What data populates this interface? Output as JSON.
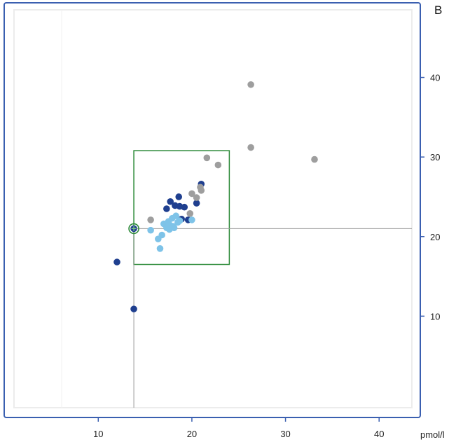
{
  "panel_label": "B",
  "chart_data": {
    "type": "scatter",
    "title": "",
    "xlabel": "pmol/l",
    "ylabel": "",
    "xlim": [
      1,
      43.5
    ],
    "ylim": [
      -1.5,
      48.5
    ],
    "x_ticks": [
      10,
      20,
      30,
      40
    ],
    "y_ticks": [
      10,
      20,
      30,
      40
    ],
    "grid": false,
    "colors": {
      "frame": "#3a5fb0",
      "box": "#2e8b3a",
      "crosshair": "#9a9a9a",
      "dark_blue": "#1f3f8f",
      "light_blue": "#7ec3e8",
      "gray": "#9e9e9e"
    },
    "reference_box": {
      "x": [
        13.8,
        24.0
      ],
      "y": [
        16.5,
        30.8
      ]
    },
    "crosshair": {
      "x": 13.8,
      "y": 21.0
    },
    "highlight_point": {
      "x": 13.8,
      "y": 21.0
    },
    "series": [
      {
        "color": "#1f3f8f",
        "points": [
          [
            12.0,
            16.8
          ],
          [
            13.8,
            10.9
          ],
          [
            13.8,
            21.0
          ],
          [
            17.3,
            23.5
          ],
          [
            17.7,
            24.4
          ],
          [
            18.2,
            23.9
          ],
          [
            18.6,
            25.0
          ],
          [
            18.9,
            22.2
          ],
          [
            19.2,
            23.7
          ],
          [
            20.5,
            24.2
          ],
          [
            21.0,
            26.6
          ],
          [
            19.6,
            22.1
          ],
          [
            18.7,
            23.8
          ]
        ]
      },
      {
        "color": "#7ec3e8",
        "points": [
          [
            15.6,
            20.8
          ],
          [
            16.4,
            19.7
          ],
          [
            16.6,
            18.5
          ],
          [
            16.8,
            20.2
          ],
          [
            17.0,
            21.6
          ],
          [
            17.3,
            21.1
          ],
          [
            17.5,
            21.9
          ],
          [
            17.7,
            21.4
          ],
          [
            17.9,
            22.3
          ],
          [
            18.1,
            21.1
          ],
          [
            18.3,
            22.6
          ],
          [
            18.5,
            21.8
          ],
          [
            18.7,
            22.0
          ],
          [
            20.0,
            22.1
          ],
          [
            17.6,
            20.9
          ],
          [
            18.0,
            21.3
          ]
        ]
      },
      {
        "color": "#9e9e9e",
        "points": [
          [
            15.6,
            22.1
          ],
          [
            19.8,
            22.9
          ],
          [
            20.0,
            25.4
          ],
          [
            20.5,
            24.9
          ],
          [
            21.0,
            25.8
          ],
          [
            21.6,
            29.9
          ],
          [
            22.8,
            29.0
          ],
          [
            26.3,
            31.2
          ],
          [
            26.3,
            39.1
          ],
          [
            33.1,
            29.7
          ],
          [
            20.9,
            26.2
          ]
        ]
      }
    ]
  }
}
